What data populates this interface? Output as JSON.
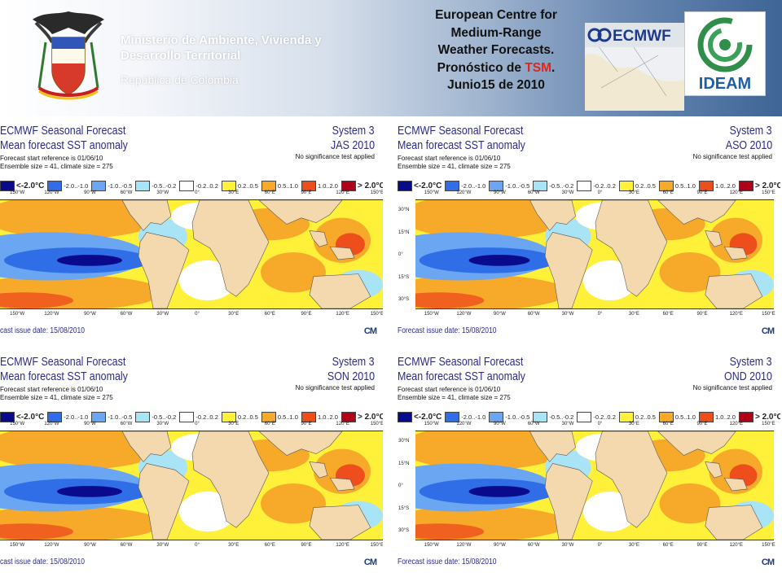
{
  "header": {
    "ministry_lines": [
      "Ministerio de Ambiente, Vivienda y",
      "Desarrollo Territorial"
    ],
    "republic": "República de Colombia",
    "headline_lines": [
      "European Centre for",
      "Medium-Range",
      "Weather Forecasts."
    ],
    "headline_prefix": "Pronóstico de ",
    "headline_highlight": "TSM",
    "headline_suffix": ".",
    "headline_date": "Junio15 de 2010",
    "highlight_color": "#e0261b",
    "ecmwf_logo_text": "ECMWF",
    "ideam_logo_text": "IDEAM"
  },
  "panel_common": {
    "title": "ECMWF Seasonal Forecast",
    "subtitle": "Mean forecast SST anomaly",
    "start_ref": "Forecast start reference is 01/06/10",
    "ensemble": "Ensemble size = 41, climate size = 275",
    "system": "System 3",
    "no_sig": "No significance test applied",
    "issue_date": "Forecast issue date: 15/08/2010",
    "logo_tail": "CM"
  },
  "legend": [
    {
      "label": "<-2.0°C",
      "color": "#0a0a8c"
    },
    {
      "label": "-2.0..-1.0",
      "color": "#2f6ee6"
    },
    {
      "label": "-1.0..-0.5",
      "color": "#6aa6f2"
    },
    {
      "label": "-0.5..-0.2",
      "color": "#a8e4f5"
    },
    {
      "label": "-0.2..0.2",
      "color": "#ffffff"
    },
    {
      "label": "0.2..0.5",
      "color": "#fff03a"
    },
    {
      "label": "0.5..1.0",
      "color": "#f7a92a"
    },
    {
      "label": "1.0..2.0",
      "color": "#ee4d1c"
    },
    {
      "label": "> 2.0°C",
      "color": "#b3001a"
    }
  ],
  "lon_labels": [
    "150°W",
    "120°W",
    "90°W",
    "60°W",
    "30°W",
    "0°",
    "30°E",
    "60°E",
    "90°E",
    "120°E",
    "150°E"
  ],
  "lat_labels": [
    "30°N",
    "15°N",
    "0°",
    "15°S",
    "30°S"
  ],
  "panels": [
    {
      "season": "JAS 2010",
      "issue_left": "cast issue date: 15/08/2010",
      "show_lat": false
    },
    {
      "season": "ASO 2010",
      "issue_left": "Forecast issue date: 15/08/2010",
      "show_lat": true
    },
    {
      "season": "SON 2010",
      "issue_left": "cast issue date: 15/08/2010",
      "show_lat": false
    },
    {
      "season": "OND 2010",
      "issue_left": "Forecast issue date: 15/08/2010",
      "show_lat": true
    }
  ]
}
